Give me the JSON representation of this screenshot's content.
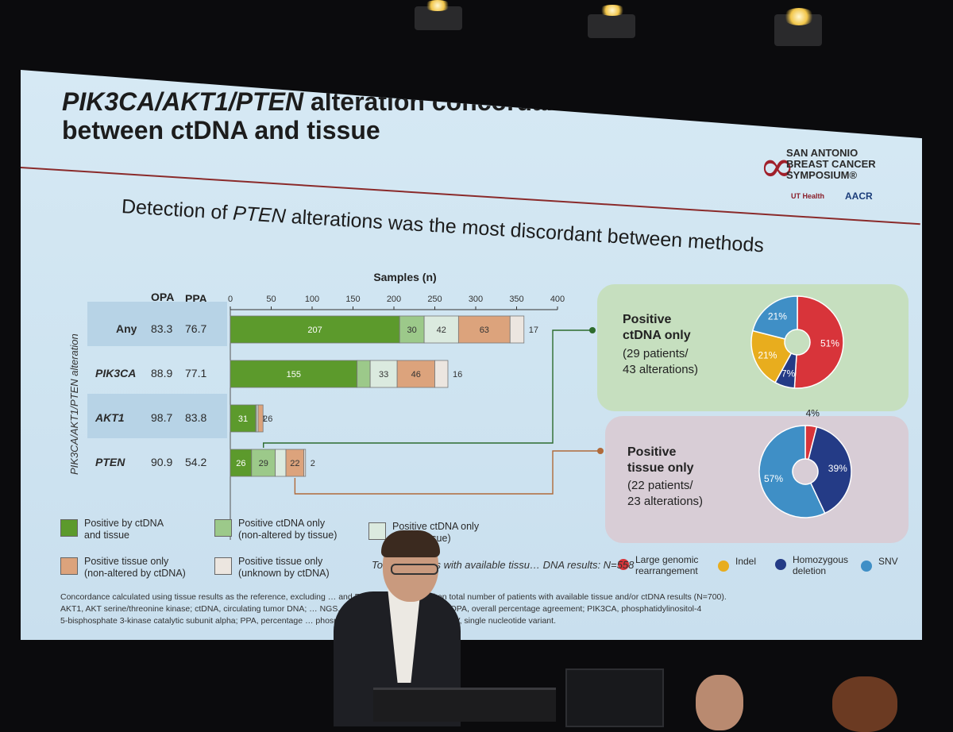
{
  "slide": {
    "title_line1_italic": "PIK3CA/AKT1/PTEN",
    "title_line1_rest": " alteration concordance",
    "title_line2": "between ctDNA and tissue",
    "subtitle_prefix": "Detection of ",
    "subtitle_italic": "PTEN",
    "subtitle_suffix": " alterations was the most discordant between methods",
    "logo_lines": [
      "SAN ANTONIO",
      "BREAST CANCER",
      "SYMPOSIUM®"
    ],
    "logo_sub1": "UT Health",
    "logo_sub2": "AACR",
    "y_axis_label": "PIK3CA/AKT1/PTEN alteration",
    "col_opa": "OPA",
    "col_ppa": "PPA",
    "total_note": "Tota… patients with available tissu… DNA results: N=558",
    "footnotes": [
      "Concordance calculated using tissue results as the reference, excluding … and PPA calculated based on total number of patients with available tissue and/or ctDNA results (N=700).",
      "AKT1, AKT serine/threonine kinase; ctDNA, circulating tumor DNA; … NGS, next-generation sequencing; OPA, overall percentage agreement; PIK3CA, phosphatidylinositol-4",
      "5-bisphosphate 3-kinase catalytic subunit alpha; PPA, percentage … phosphatase and tensin homolog; SNV, single nucleotide variant."
    ]
  },
  "chart_data": [
    {
      "type": "bar",
      "orientation": "horizontal-stacked",
      "title": "",
      "xlabel": "Samples (n)",
      "xlim": [
        0,
        400
      ],
      "xticks": [
        0,
        50,
        100,
        150,
        200,
        250,
        300,
        350,
        400
      ],
      "categories": [
        "Any",
        "PIK3CA",
        "AKT1",
        "PTEN"
      ],
      "opa": [
        "83.3",
        "88.9",
        "98.7",
        "90.9"
      ],
      "ppa": [
        "76.7",
        "77.1",
        "83.8",
        "54.2"
      ],
      "series": [
        {
          "name": "Positive by ctDNA and tissue",
          "color": "#5c9a2c",
          "values": [
            207,
            155,
            31,
            26
          ]
        },
        {
          "name": "Positive ctDNA only (non-altered by tissue)",
          "color": "#9cc98a",
          "values": [
            30,
            16,
            1,
            29
          ]
        },
        {
          "name": "Positive ctDNA only (unknown by tissue)",
          "color": "#dbeadf",
          "values": [
            42,
            33,
            2,
            13
          ]
        },
        {
          "name": "Positive tissue only (non-altered by ctDNA)",
          "color": "#dca37c",
          "values": [
            63,
            46,
            6,
            22
          ]
        },
        {
          "name": "Positive tissue only (unknown by ctDNA)",
          "color": "#ece6e0",
          "values": [
            17,
            16,
            0,
            2
          ]
        }
      ],
      "legend": {
        "placement": "bottom",
        "items": [
          {
            "l1": "Positive by ctDNA",
            "l2": "and tissue"
          },
          {
            "l1": "Positive ctDNA only",
            "l2": "(non-altered by tissue)"
          },
          {
            "l1": "Positive ctDNA only",
            "l2": "(… by tissue)"
          },
          {
            "l1": "Positive tissue only",
            "l2": "(non-altered by ctDNA)"
          },
          {
            "l1": "Positive tissue only",
            "l2": "(unknown by ctDNA)"
          }
        ]
      }
    },
    {
      "type": "pie",
      "variant": "donut",
      "panel_title": [
        "Positive",
        "ctDNA only"
      ],
      "panel_sub": [
        "(29 patients/",
        "43 alterations)"
      ],
      "slices": [
        {
          "label": "Large genomic rearrangement",
          "value": 51,
          "text": "51%",
          "color": "#d8343a"
        },
        {
          "label": "Homozygous deletion",
          "value": 7,
          "text": "7%",
          "color": "#243b86"
        },
        {
          "label": "Indel",
          "value": 21,
          "text": "21%",
          "color": "#e8ad1e"
        },
        {
          "label": "SNV",
          "value": 21,
          "text": "21%",
          "color": "#3f8fc6"
        }
      ]
    },
    {
      "type": "pie",
      "variant": "donut",
      "panel_title": [
        "Positive",
        "tissue only"
      ],
      "panel_sub": [
        "(22 patients/",
        "23 alterations)"
      ],
      "slices": [
        {
          "label": "Large genomic rearrangement",
          "value": 4,
          "text": "4%",
          "color": "#d8343a"
        },
        {
          "label": "Homozygous deletion",
          "value": 39,
          "text": "39%",
          "color": "#243b86"
        },
        {
          "label": "SNV",
          "value": 57,
          "text": "57%",
          "color": "#3f8fc6"
        }
      ]
    }
  ],
  "pie_legend": [
    {
      "l1": "Large genomic",
      "l2": "rearrangement",
      "color": "#d8343a"
    },
    {
      "l1": "Indel",
      "l2": "",
      "color": "#e8ad1e"
    },
    {
      "l1": "Homozygous",
      "l2": "deletion",
      "color": "#243b86"
    },
    {
      "l1": "SNV",
      "l2": "",
      "color": "#3f8fc6"
    }
  ]
}
